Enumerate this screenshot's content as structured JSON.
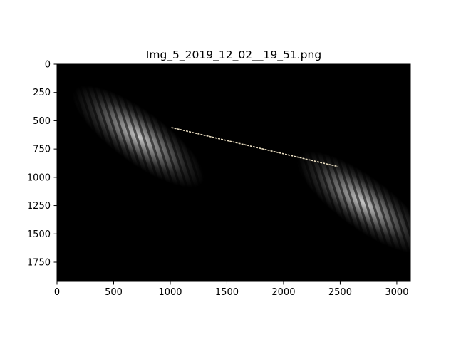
{
  "chart_data": {
    "type": "heatmap",
    "title": "Img_5_2019_12_02__19_51.png",
    "xlabel": "",
    "ylabel": "",
    "image_size": [
      3120,
      1920
    ],
    "xlim": [
      0,
      3120
    ],
    "ylim": [
      1920,
      0
    ],
    "x_ticks": [
      0,
      500,
      1000,
      1500,
      2000,
      2500,
      3000
    ],
    "y_ticks": [
      0,
      250,
      500,
      750,
      1000,
      1250,
      1500,
      1750
    ],
    "grid": false,
    "legend": "none",
    "colormap": "gray",
    "blobs": [
      {
        "cx": 720,
        "cy": 640,
        "rx": 700,
        "ry": 230,
        "angle_deg": 36
      },
      {
        "cx": 2700,
        "cy": 1220,
        "rx": 700,
        "ry": 230,
        "angle_deg": 36
      }
    ],
    "overlay_line": {
      "color": "#e8dcc0",
      "points": [
        [
          1010,
          560
        ],
        [
          2480,
          905
        ]
      ]
    }
  }
}
